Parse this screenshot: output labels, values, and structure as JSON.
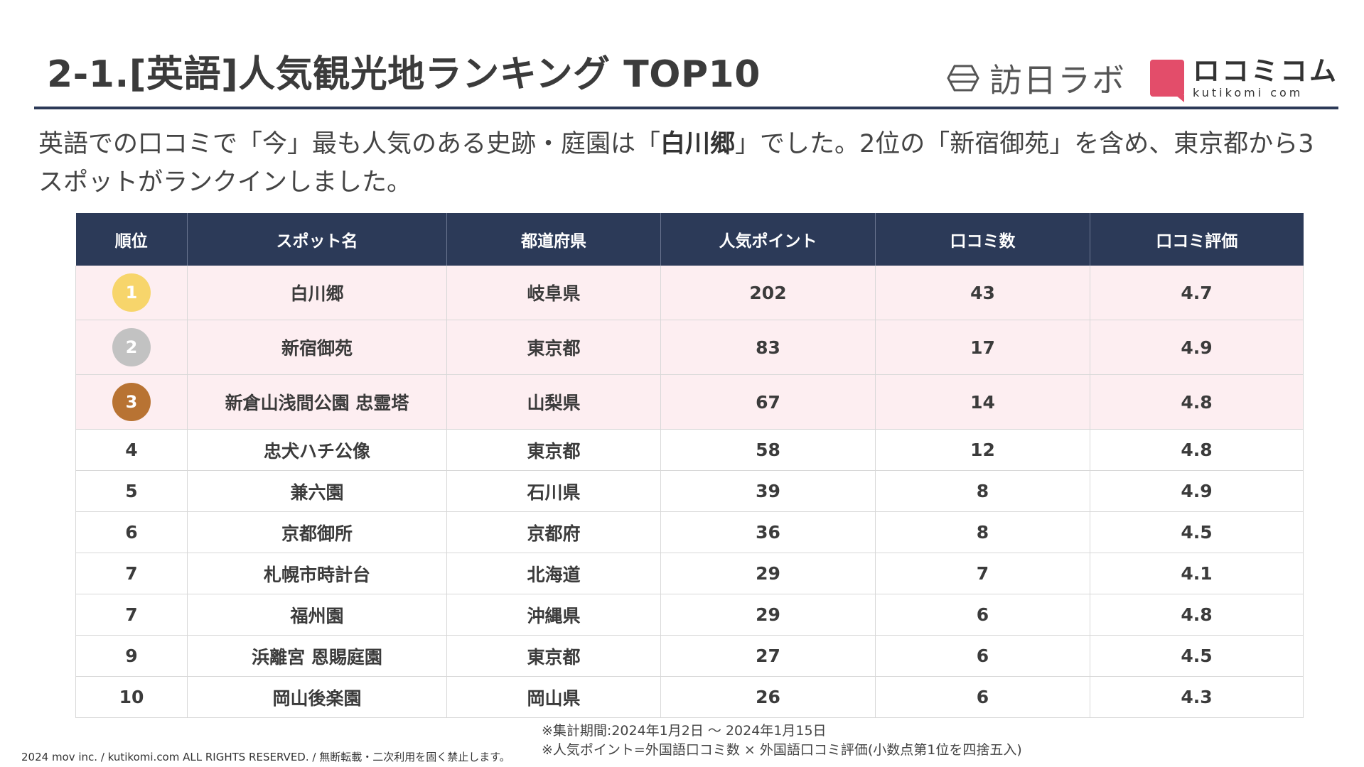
{
  "header": {
    "title": "2-1.[英語]人気観光地ランキング TOP10",
    "logo_houjin": "訪日ラボ",
    "logo_kuchikomi_main": "ロコミコム",
    "logo_kuchikomi_sub": "kutikomi com"
  },
  "lead": {
    "part1": "英語での口コミで「今」最も人気のある史跡・庭園は「",
    "highlight": "白川郷",
    "part2": "」でした。2位の「新宿御苑」を含め、東京都から3スポットがランクインしました。"
  },
  "table": {
    "headers": [
      "順位",
      "スポット名",
      "都道府県",
      "人気ポイント",
      "口コミ数",
      "口コミ評価"
    ],
    "rows": [
      {
        "rank": "1",
        "spot": "白川郷",
        "pref": "岐阜県",
        "points": "202",
        "reviews": "43",
        "rating": "4.7",
        "medal_color": "#f7d56b"
      },
      {
        "rank": "2",
        "spot": "新宿御苑",
        "pref": "東京都",
        "points": "83",
        "reviews": "17",
        "rating": "4.9",
        "medal_color": "#c2c2c2"
      },
      {
        "rank": "3",
        "spot": "新倉山浅間公園 忠霊塔",
        "pref": "山梨県",
        "points": "67",
        "reviews": "14",
        "rating": "4.8",
        "medal_color": "#b87333"
      },
      {
        "rank": "4",
        "spot": "忠犬ハチ公像",
        "pref": "東京都",
        "points": "58",
        "reviews": "12",
        "rating": "4.8"
      },
      {
        "rank": "5",
        "spot": "兼六園",
        "pref": "石川県",
        "points": "39",
        "reviews": "8",
        "rating": "4.9"
      },
      {
        "rank": "6",
        "spot": "京都御所",
        "pref": "京都府",
        "points": "36",
        "reviews": "8",
        "rating": "4.5"
      },
      {
        "rank": "7",
        "spot": "札幌市時計台",
        "pref": "北海道",
        "points": "29",
        "reviews": "7",
        "rating": "4.1"
      },
      {
        "rank": "7",
        "spot": "福州園",
        "pref": "沖縄県",
        "points": "29",
        "reviews": "6",
        "rating": "4.8"
      },
      {
        "rank": "9",
        "spot": "浜離宮 恩賜庭園",
        "pref": "東京都",
        "points": "27",
        "reviews": "6",
        "rating": "4.5"
      },
      {
        "rank": "10",
        "spot": "岡山後楽園",
        "pref": "岡山県",
        "points": "26",
        "reviews": "6",
        "rating": "4.3"
      }
    ]
  },
  "notes": {
    "period": "※集計期間:2024年1月2日 〜 2024年1月15日",
    "formula": "※人気ポイント=外国語口コミ数 × 外国語口コミ評価(小数点第1位を四捨五入)"
  },
  "footer": {
    "copyright": "2024 mov inc. / kutikomi.com ALL RIGHTS RESERVED. / 無断転載・二次利用を固く禁止します。"
  },
  "colors": {
    "header_bg": "#2c3a58",
    "top3_row_bg": "#fdeef1",
    "brand_pink": "#e34d6a"
  }
}
